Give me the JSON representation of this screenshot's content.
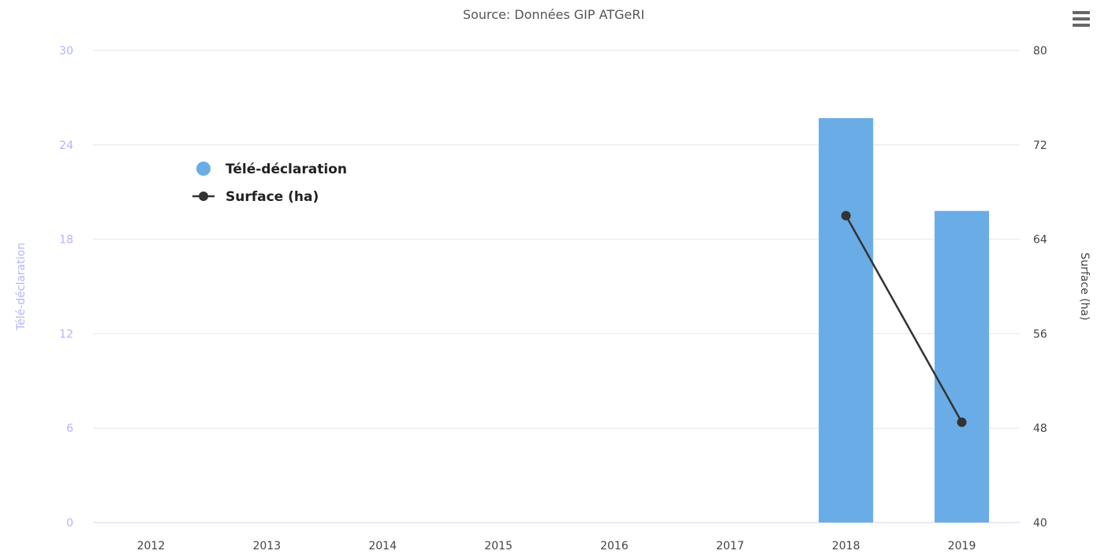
{
  "subtitle": "Source: Données GIP ATGeRI",
  "menu": {
    "icon": "hamburger-menu-icon"
  },
  "colors": {
    "bar": "#6aace6",
    "line": "#333333",
    "left_axis_text": "#b3b3ff",
    "grid": "#e6e6e6",
    "text": "#444444"
  },
  "chart_data": {
    "type": "bar",
    "categories": [
      "2012",
      "2013",
      "2014",
      "2015",
      "2016",
      "2017",
      "2018",
      "2019"
    ],
    "series": [
      {
        "name": "Télé-déclaration",
        "type": "bar",
        "axis": "left",
        "values": [
          0,
          0,
          0,
          0,
          0,
          0,
          25.7,
          19.8
        ]
      },
      {
        "name": "Surface (ha)",
        "type": "line",
        "axis": "right",
        "values": [
          null,
          null,
          null,
          null,
          null,
          null,
          66.0,
          48.5
        ]
      }
    ],
    "left_axis": {
      "label": "Télé-déclaration",
      "range": [
        0,
        30
      ],
      "ticks": [
        "0",
        "6",
        "12",
        "18",
        "24",
        "30"
      ]
    },
    "right_axis": {
      "label": "Surface (ha)",
      "range": [
        40,
        80
      ],
      "ticks": [
        "40",
        "48",
        "56",
        "64",
        "72",
        "80"
      ]
    },
    "grid": true,
    "legend_position": "top-left"
  }
}
